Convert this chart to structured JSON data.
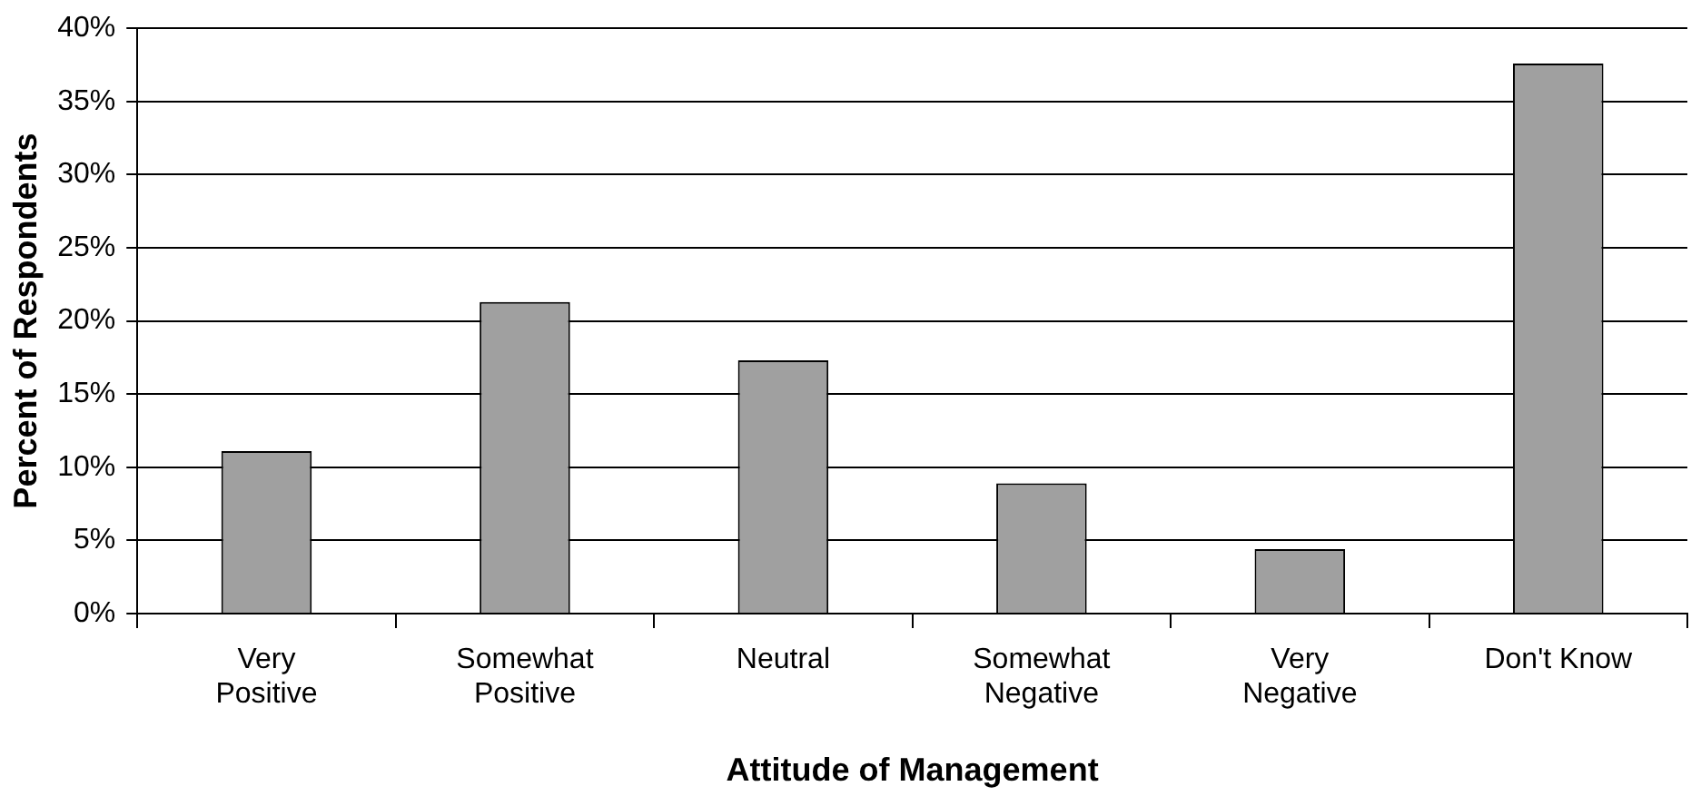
{
  "chart_data": {
    "type": "bar",
    "xlabel": "Attitude of Management",
    "ylabel": "Percent of Respondents",
    "categories": [
      "Very Positive",
      "Somewhat Positive",
      "Neutral",
      "Somewhat Negative",
      "Very Negative",
      "Don't Know"
    ],
    "values": [
      11.1,
      21.3,
      17.3,
      8.9,
      4.4,
      37.6
    ],
    "color": "#a0a0a0",
    "ylim": [
      0,
      40
    ],
    "yticks": [
      {
        "value": 0,
        "label": "0%"
      },
      {
        "value": 5,
        "label": "5%"
      },
      {
        "value": 10,
        "label": "10%"
      },
      {
        "value": 15,
        "label": "15%"
      },
      {
        "value": 20,
        "label": "20%"
      },
      {
        "value": 25,
        "label": "25%"
      },
      {
        "value": 30,
        "label": "30%"
      },
      {
        "value": 35,
        "label": "35%"
      },
      {
        "value": 40,
        "label": "40%"
      }
    ],
    "grid": "y",
    "legend": false
  }
}
